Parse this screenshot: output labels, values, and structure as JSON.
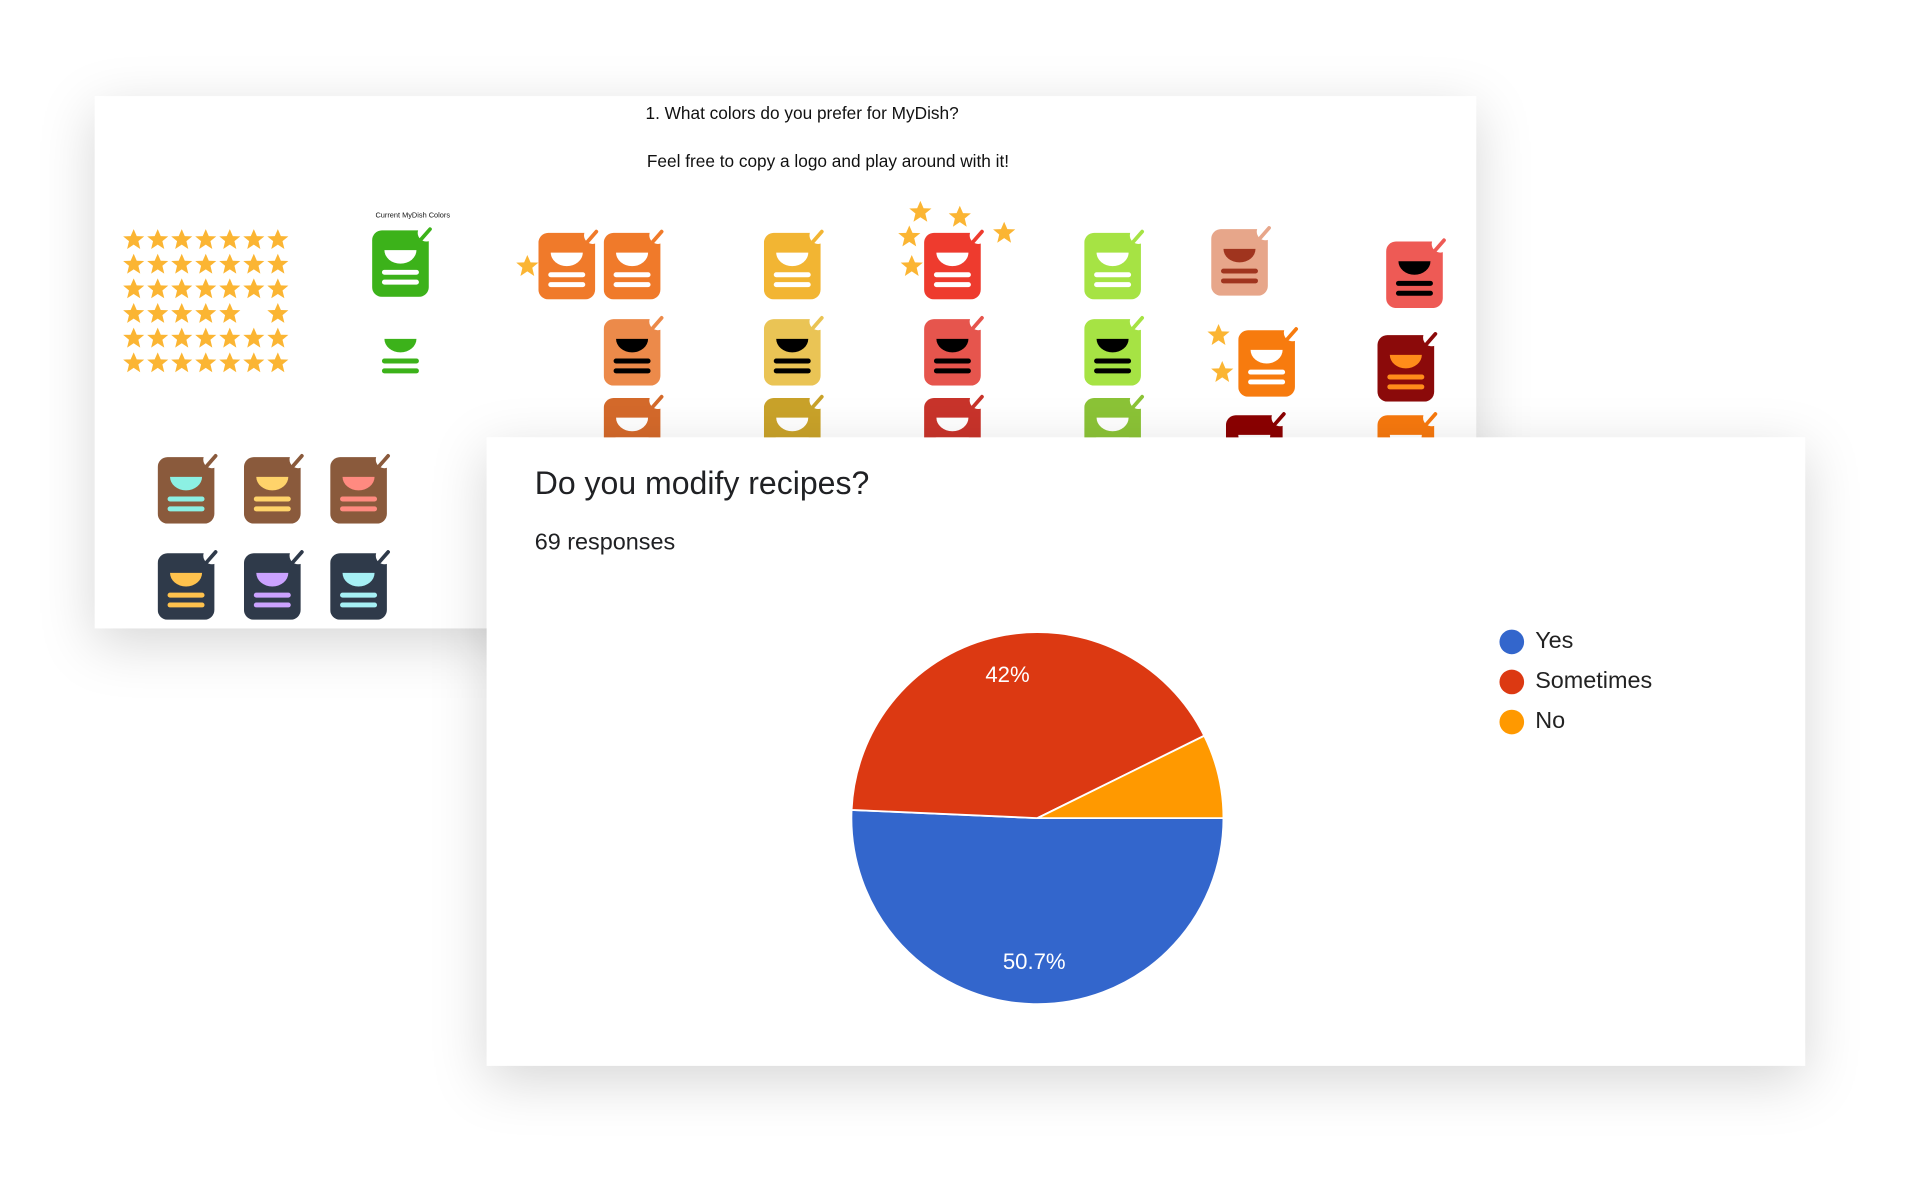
{
  "slide": {
    "question": "1. What colors do you prefer for MyDish?",
    "hint": "Feel free to copy a logo and play around with it!",
    "current_label": "Current MyDish Colors"
  },
  "chart_data": {
    "type": "pie",
    "title": "Do you modify recipes?",
    "subtitle": "69 responses",
    "categories": [
      "Yes",
      "Sometimes",
      "No"
    ],
    "values": [
      50.7,
      42,
      7.3
    ],
    "value_labels": [
      "50.7%",
      "42%",
      null
    ],
    "colors": [
      "#3366cc",
      "#dc3912",
      "#ff9900"
    ],
    "legend": "right"
  }
}
